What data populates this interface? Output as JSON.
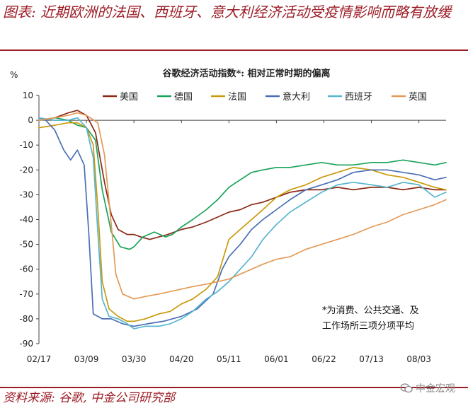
{
  "header": {
    "title": "图表: 近期欧洲的法国、西班牙、意大利经济活动受疫情影响而略有放缓"
  },
  "footer": {
    "source": "资料来源: 谷歌, 中金公司研究部",
    "watermark": "中金宏观"
  },
  "chart_data": {
    "type": "line",
    "title": "谷歌经济活动指数*: 相对正常时期的偏离",
    "ylabel": "%",
    "xlabel": "",
    "ylim": [
      -90,
      10
    ],
    "yticks": [
      10,
      0,
      -10,
      -20,
      -30,
      -40,
      -50,
      -60,
      -70,
      -80,
      -90
    ],
    "xlim": [
      "02/17",
      "08/15"
    ],
    "xticks": [
      "02/17",
      "03/09",
      "03/30",
      "04/20",
      "05/11",
      "06/01",
      "06/22",
      "07/13",
      "08/03"
    ],
    "grid": false,
    "legend_position": "top",
    "annotation": [
      "*为消费、公共交通、及",
      "工作场所三项分项平均"
    ],
    "series": [
      {
        "name": "美国",
        "color": "#8b2a16",
        "points": [
          [
            "02/17",
            0
          ],
          [
            "02/24",
            1
          ],
          [
            "03/01",
            3
          ],
          [
            "03/05",
            4
          ],
          [
            "03/09",
            2
          ],
          [
            "03/13",
            -5
          ],
          [
            "03/17",
            -25
          ],
          [
            "03/20",
            -38
          ],
          [
            "03/23",
            -44
          ],
          [
            "03/27",
            -46
          ],
          [
            "03/30",
            -46
          ],
          [
            "04/02",
            -47
          ],
          [
            "04/06",
            -48
          ],
          [
            "04/10",
            -47
          ],
          [
            "04/14",
            -46
          ],
          [
            "04/20",
            -44
          ],
          [
            "04/25",
            -43
          ],
          [
            "05/01",
            -41
          ],
          [
            "05/06",
            -39
          ],
          [
            "05/11",
            -37
          ],
          [
            "05/16",
            -36
          ],
          [
            "05/21",
            -34
          ],
          [
            "05/26",
            -33
          ],
          [
            "06/01",
            -31
          ],
          [
            "06/07",
            -29
          ],
          [
            "06/14",
            -28
          ],
          [
            "06/21",
            -28
          ],
          [
            "06/28",
            -27
          ],
          [
            "07/05",
            -28
          ],
          [
            "07/13",
            -27
          ],
          [
            "07/20",
            -27
          ],
          [
            "07/27",
            -28
          ],
          [
            "08/03",
            -27
          ],
          [
            "08/10",
            -28
          ],
          [
            "08/15",
            -28
          ]
        ]
      },
      {
        "name": "德国",
        "color": "#1aa35a",
        "points": [
          [
            "02/17",
            0
          ],
          [
            "02/24",
            1
          ],
          [
            "03/01",
            0
          ],
          [
            "03/05",
            -2
          ],
          [
            "03/09",
            -3
          ],
          [
            "03/13",
            -8
          ],
          [
            "03/16",
            -28
          ],
          [
            "03/20",
            -45
          ],
          [
            "03/24",
            -51
          ],
          [
            "03/28",
            -52
          ],
          [
            "03/30",
            -51
          ],
          [
            "04/03",
            -47
          ],
          [
            "04/08",
            -45
          ],
          [
            "04/13",
            -47
          ],
          [
            "04/16",
            -46
          ],
          [
            "04/20",
            -43
          ],
          [
            "04/25",
            -40
          ],
          [
            "05/01",
            -36
          ],
          [
            "05/06",
            -32
          ],
          [
            "05/11",
            -27
          ],
          [
            "05/16",
            -24
          ],
          [
            "05/21",
            -21
          ],
          [
            "05/26",
            -20
          ],
          [
            "06/01",
            -19
          ],
          [
            "06/07",
            -19
          ],
          [
            "06/14",
            -18
          ],
          [
            "06/21",
            -17
          ],
          [
            "06/28",
            -18
          ],
          [
            "07/05",
            -18
          ],
          [
            "07/13",
            -17
          ],
          [
            "07/20",
            -17
          ],
          [
            "07/27",
            -16
          ],
          [
            "08/03",
            -17
          ],
          [
            "08/10",
            -18
          ],
          [
            "08/15",
            -17
          ]
        ]
      },
      {
        "name": "法国",
        "color": "#c99a0a",
        "points": [
          [
            "02/17",
            -3
          ],
          [
            "02/24",
            -2
          ],
          [
            "03/01",
            -1
          ],
          [
            "03/05",
            -1
          ],
          [
            "03/09",
            -3
          ],
          [
            "03/12",
            -10
          ],
          [
            "03/14",
            -35
          ],
          [
            "03/16",
            -65
          ],
          [
            "03/19",
            -76
          ],
          [
            "03/23",
            -79
          ],
          [
            "03/27",
            -81
          ],
          [
            "03/30",
            -81
          ],
          [
            "04/04",
            -80
          ],
          [
            "04/10",
            -78
          ],
          [
            "04/15",
            -77
          ],
          [
            "04/20",
            -74
          ],
          [
            "04/25",
            -72
          ],
          [
            "05/01",
            -68
          ],
          [
            "05/06",
            -63
          ],
          [
            "05/11",
            -48
          ],
          [
            "05/16",
            -44
          ],
          [
            "05/21",
            -40
          ],
          [
            "05/26",
            -36
          ],
          [
            "06/01",
            -31
          ],
          [
            "06/07",
            -28
          ],
          [
            "06/14",
            -26
          ],
          [
            "06/21",
            -23
          ],
          [
            "06/28",
            -21
          ],
          [
            "07/05",
            -19
          ],
          [
            "07/13",
            -20
          ],
          [
            "07/20",
            -22
          ],
          [
            "07/27",
            -23
          ],
          [
            "08/03",
            -25
          ],
          [
            "08/10",
            -27
          ],
          [
            "08/15",
            -28
          ]
        ]
      },
      {
        "name": "意大利",
        "color": "#4a6fb5",
        "points": [
          [
            "02/17",
            1
          ],
          [
            "02/20",
            0
          ],
          [
            "02/24",
            -4
          ],
          [
            "02/28",
            -12
          ],
          [
            "03/02",
            -16
          ],
          [
            "03/05",
            -12
          ],
          [
            "03/08",
            -18
          ],
          [
            "03/10",
            -45
          ],
          [
            "03/12",
            -78
          ],
          [
            "03/16",
            -80
          ],
          [
            "03/20",
            -80
          ],
          [
            "03/25",
            -82
          ],
          [
            "03/30",
            -83
          ],
          [
            "04/05",
            -82
          ],
          [
            "04/12",
            -81
          ],
          [
            "04/20",
            -79
          ],
          [
            "04/27",
            -76
          ],
          [
            "05/04",
            -70
          ],
          [
            "05/08",
            -60
          ],
          [
            "05/11",
            -55
          ],
          [
            "05/16",
            -50
          ],
          [
            "05/21",
            -44
          ],
          [
            "05/26",
            -40
          ],
          [
            "06/01",
            -36
          ],
          [
            "06/07",
            -32
          ],
          [
            "06/14",
            -28
          ],
          [
            "06/21",
            -26
          ],
          [
            "06/28",
            -24
          ],
          [
            "07/05",
            -21
          ],
          [
            "07/13",
            -20
          ],
          [
            "07/20",
            -20
          ],
          [
            "07/27",
            -21
          ],
          [
            "08/03",
            -22
          ],
          [
            "08/10",
            -24
          ],
          [
            "08/15",
            -23
          ]
        ]
      },
      {
        "name": "西班牙",
        "color": "#58b6cf",
        "points": [
          [
            "02/17",
            1
          ],
          [
            "02/24",
            0
          ],
          [
            "03/01",
            0
          ],
          [
            "03/05",
            1
          ],
          [
            "03/09",
            -3
          ],
          [
            "03/12",
            -15
          ],
          [
            "03/14",
            -45
          ],
          [
            "03/16",
            -72
          ],
          [
            "03/19",
            -79
          ],
          [
            "03/23",
            -80
          ],
          [
            "03/27",
            -82
          ],
          [
            "03/30",
            -84
          ],
          [
            "04/04",
            -83
          ],
          [
            "04/10",
            -83
          ],
          [
            "04/15",
            -82
          ],
          [
            "04/20",
            -80
          ],
          [
            "04/25",
            -77
          ],
          [
            "05/01",
            -72
          ],
          [
            "05/06",
            -69
          ],
          [
            "05/11",
            -65
          ],
          [
            "05/16",
            -60
          ],
          [
            "05/21",
            -55
          ],
          [
            "05/26",
            -48
          ],
          [
            "06/01",
            -42
          ],
          [
            "06/07",
            -37
          ],
          [
            "06/14",
            -33
          ],
          [
            "06/21",
            -29
          ],
          [
            "06/28",
            -26
          ],
          [
            "07/05",
            -25
          ],
          [
            "07/13",
            -26
          ],
          [
            "07/20",
            -27
          ],
          [
            "07/27",
            -25
          ],
          [
            "08/03",
            -26
          ],
          [
            "08/10",
            -31
          ],
          [
            "08/15",
            -29
          ]
        ]
      },
      {
        "name": "英国",
        "color": "#e39a58",
        "points": [
          [
            "02/17",
            0
          ],
          [
            "02/24",
            1
          ],
          [
            "03/01",
            2
          ],
          [
            "03/05",
            3
          ],
          [
            "03/09",
            2
          ],
          [
            "03/14",
            -1
          ],
          [
            "03/17",
            -14
          ],
          [
            "03/20",
            -42
          ],
          [
            "03/22",
            -62
          ],
          [
            "03/25",
            -70
          ],
          [
            "03/30",
            -72
          ],
          [
            "04/04",
            -71
          ],
          [
            "04/10",
            -70
          ],
          [
            "04/15",
            -69
          ],
          [
            "04/20",
            -68
          ],
          [
            "04/25",
            -67
          ],
          [
            "05/01",
            -66
          ],
          [
            "05/06",
            -65
          ],
          [
            "05/11",
            -64
          ],
          [
            "05/16",
            -62
          ],
          [
            "05/21",
            -60
          ],
          [
            "05/26",
            -58
          ],
          [
            "06/01",
            -56
          ],
          [
            "06/07",
            -55
          ],
          [
            "06/14",
            -52
          ],
          [
            "06/21",
            -50
          ],
          [
            "06/28",
            -48
          ],
          [
            "07/05",
            -46
          ],
          [
            "07/13",
            -43
          ],
          [
            "07/20",
            -41
          ],
          [
            "07/27",
            -38
          ],
          [
            "08/03",
            -36
          ],
          [
            "08/10",
            -34
          ],
          [
            "08/15",
            -32
          ]
        ]
      }
    ]
  }
}
